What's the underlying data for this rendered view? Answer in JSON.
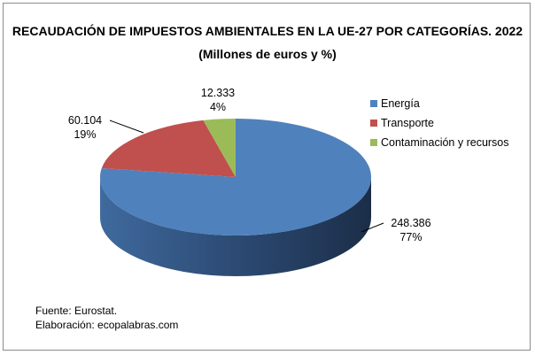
{
  "chart_data": {
    "type": "pie",
    "style": "3d",
    "title": "RECAUDACIÓN DE IMPUESTOS AMBIENTALES EN LA UE-27 POR CATEGORÍAS. 2022",
    "subtitle": "(Millones de euros y %)",
    "categories": [
      "Energía",
      "Transporte",
      "Contaminación y recursos"
    ],
    "values": [
      248386,
      60104,
      12333
    ],
    "value_labels": [
      "248.386",
      "60.104",
      "12.333"
    ],
    "percent_labels": [
      "77%",
      "19%",
      "4%"
    ],
    "colors": [
      "#4f81bd",
      "#c0504d",
      "#9bbb59"
    ],
    "legend": "right"
  },
  "footer": {
    "source": "Fuente: Eurostat.",
    "elaboration": "Elaboración: ecopalabras.com"
  }
}
